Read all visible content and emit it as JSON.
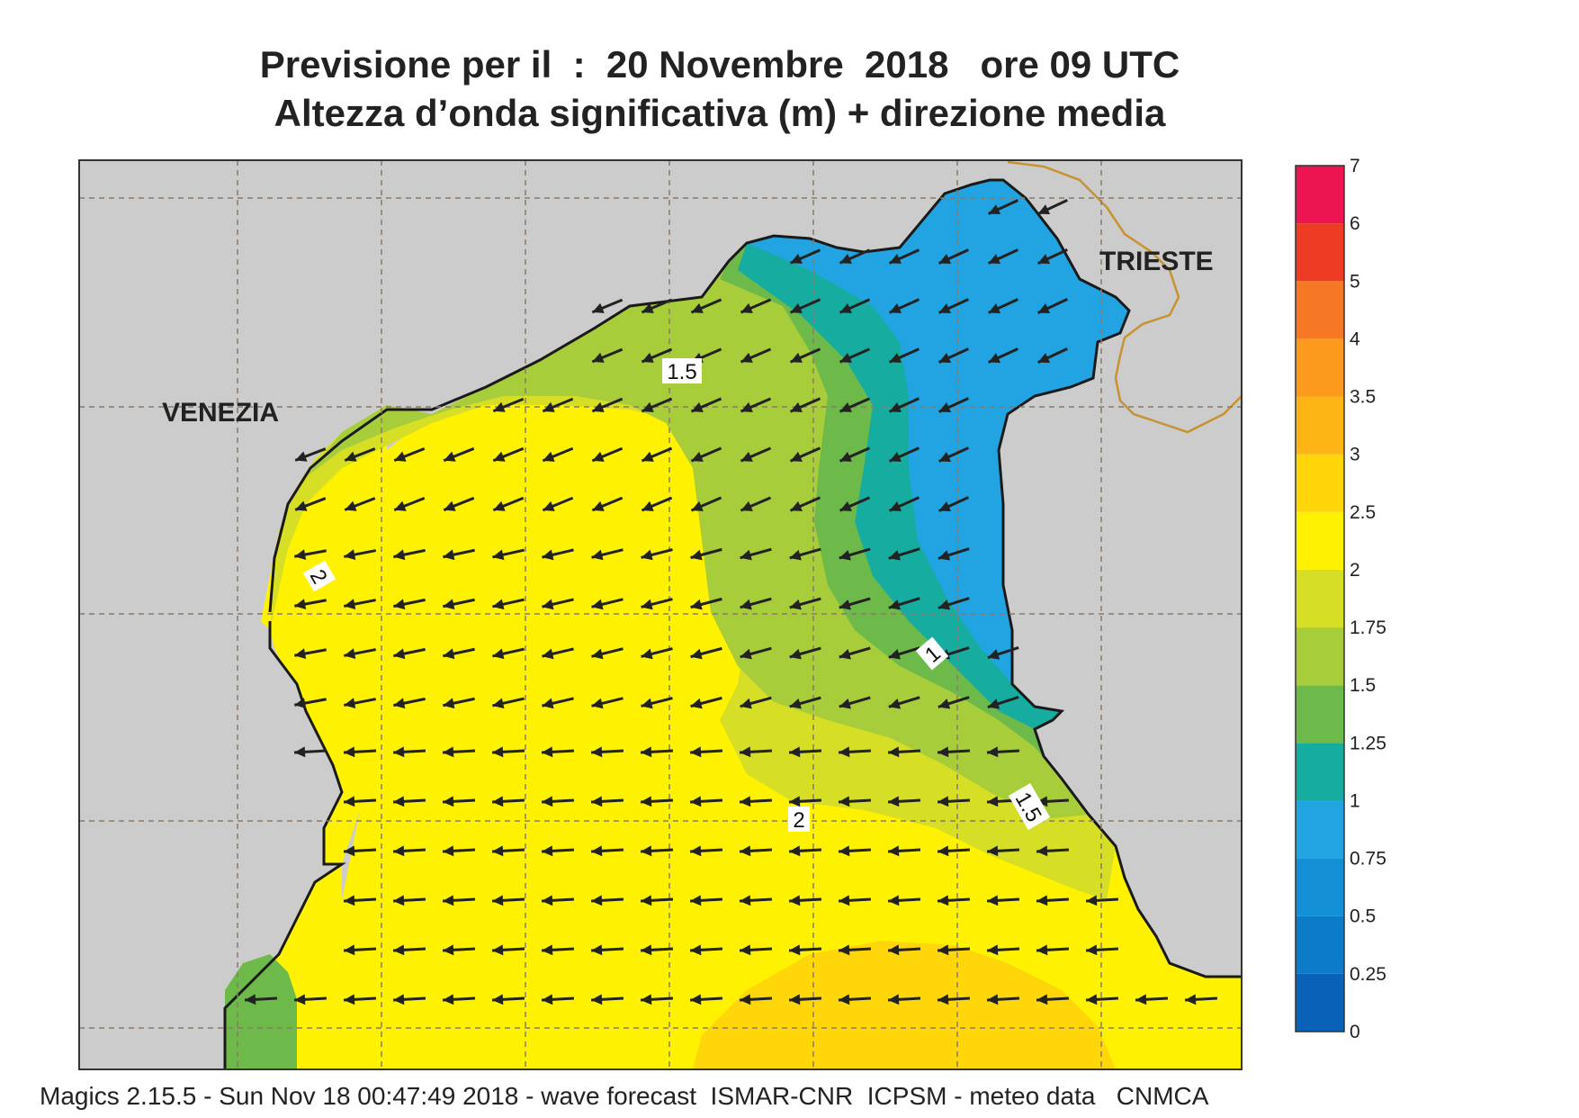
{
  "title_line1": "Previsione per il  :  20 Novembre  2018   ore 09 UTC",
  "title_line2": "Altezza d’onda significativa (m) + direzione media",
  "footer": "Magics 2.15.5 - Sun Nov 18 00:47:49 2018 - wave forecast  ISMAR-CNR  ICPSM - meteo data   CNMCA",
  "cities": [
    {
      "name": "VENEZIA"
    },
    {
      "name": "TRIESTE"
    }
  ],
  "contour_labels": [
    "1.5",
    "2",
    "1",
    "2",
    "1.5"
  ],
  "colorbar": {
    "levels": [
      "0",
      "0.25",
      "0.5",
      "0.75",
      "1",
      "1.25",
      "1.5",
      "1.75",
      "2",
      "2.5",
      "3",
      "3.5",
      "4",
      "5",
      "6",
      "7"
    ],
    "colors": [
      "#0a62b8",
      "#0c7cc9",
      "#138fd6",
      "#22a4e3",
      "#16ada0",
      "#6dba4a",
      "#a8cd3a",
      "#d6df26",
      "#fff200",
      "#ffd60a",
      "#fdb515",
      "#fb9a1c",
      "#f67824",
      "#ee3b24",
      "#ec1551"
    ]
  },
  "colors": {
    "land": "#cccccd",
    "coast": "#1a1a1a",
    "border": "#c8922e",
    "arrow": "#222222"
  }
}
